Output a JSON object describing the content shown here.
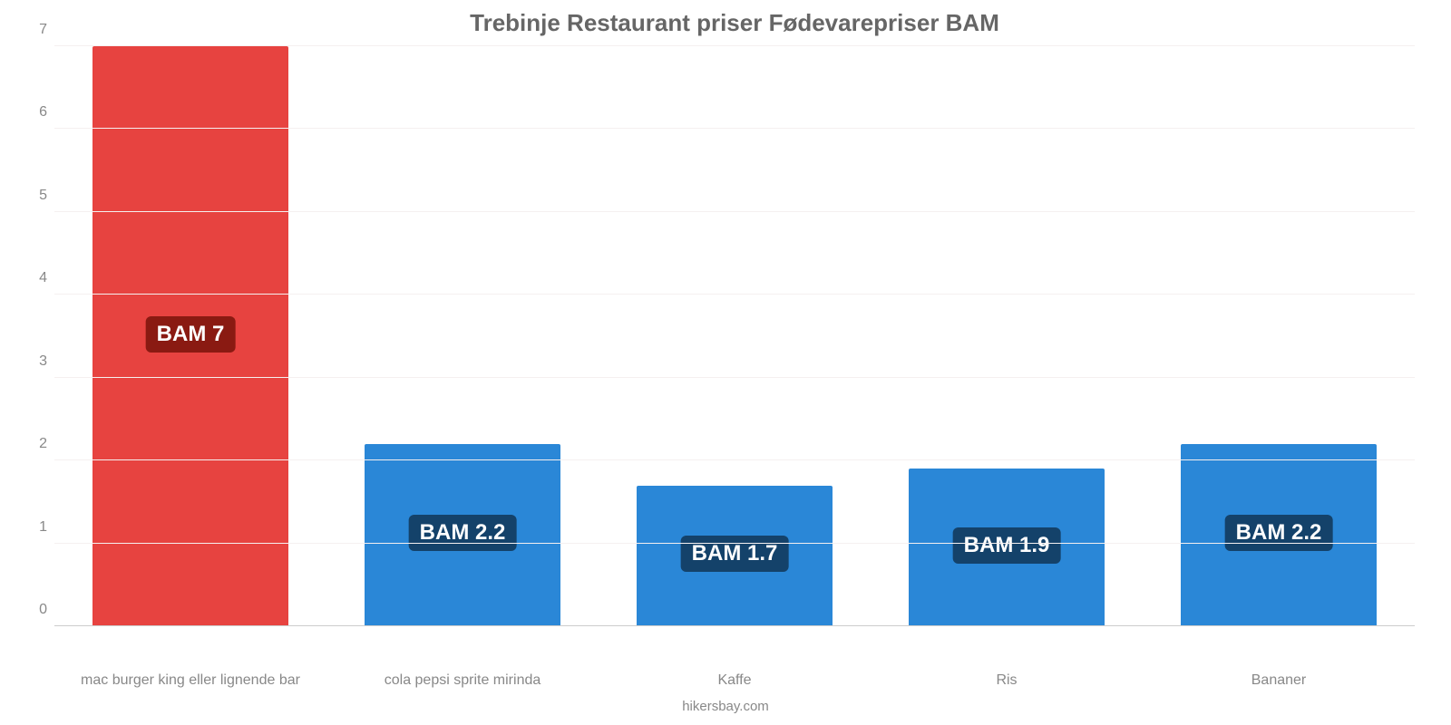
{
  "chart": {
    "type": "bar",
    "title": "Trebinje Restaurant priser Fødevarepriser BAM",
    "title_fontsize": 26,
    "title_color": "#666666",
    "background_color": "#ffffff",
    "grid_color": "#f5f0f0",
    "axis_color": "#cccccc",
    "tick_label_color": "#888888",
    "tick_label_fontsize": 16,
    "xlabel_fontsize": 16,
    "ylim": [
      0,
      7
    ],
    "yticks": [
      0,
      1,
      2,
      3,
      4,
      5,
      6,
      7
    ],
    "bar_width_pct": 72,
    "categories": [
      "mac burger king eller lignende bar",
      "cola pepsi sprite mirinda",
      "Kaffe",
      "Ris",
      "Bananer"
    ],
    "values": [
      7,
      2.2,
      1.7,
      1.9,
      2.2
    ],
    "value_labels": [
      "BAM 7",
      "BAM 2.2",
      "BAM 1.7",
      "BAM 1.9",
      "BAM 2.2"
    ],
    "bar_colors": [
      "#e74340",
      "#2a87d7",
      "#2a87d7",
      "#2a87d7",
      "#2a87d7"
    ],
    "badge_bg_colors": [
      "#8a1a12",
      "#14426a",
      "#14426a",
      "#14426a",
      "#14426a"
    ],
    "badge_text_color": "#ffffff",
    "badge_fontsize": 24,
    "footer": "hikersbay.com",
    "footer_fontsize": 15,
    "footer_color": "#888888"
  }
}
